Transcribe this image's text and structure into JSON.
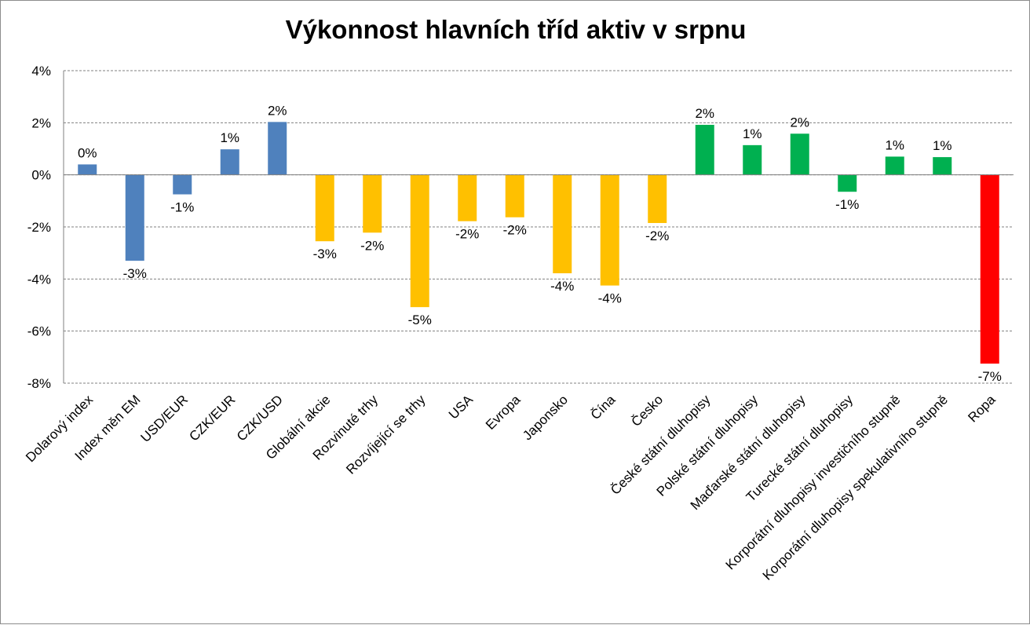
{
  "chart_data": {
    "type": "bar",
    "title": "Výkonnost hlavních tříd aktiv v srpnu",
    "xlabel": "",
    "ylabel": "",
    "ylim": [
      -0.08,
      0.04
    ],
    "y_ticks": [
      "4%",
      "2%",
      "0%",
      "-2%",
      "-4%",
      "-6%",
      "-8%"
    ],
    "y_tick_values": [
      0.04,
      0.02,
      0.0,
      -0.02,
      -0.04,
      -0.06,
      -0.08
    ],
    "grid": "horizontal dashed",
    "legend": "none",
    "categories": [
      "Dolarový index",
      "Index měn EM",
      "USD/EUR",
      "CZK/EUR",
      "CZK/USD",
      "Globální akcie",
      "Rozvinuté trhy",
      "Rozvíjející se trhy",
      "USA",
      "Evropa",
      "Japonsko",
      "Čína",
      "Česko",
      "České státní dluhopisy",
      "Polské státní dluhopisy",
      "Maďarské státní dluhopisy",
      "Turecké státní dluhopisy",
      "Korporátní dluhopisy investičního stupně",
      "Korporátní dluhopisy spekulativního stupně",
      "Ropa"
    ],
    "values": [
      0.004,
      -0.033,
      -0.0075,
      0.0098,
      0.0203,
      -0.0255,
      -0.0222,
      -0.0508,
      -0.0178,
      -0.0163,
      -0.0378,
      -0.0425,
      -0.0185,
      0.0192,
      0.0114,
      0.0158,
      -0.0065,
      0.007,
      0.0068,
      -0.0725
    ],
    "data_labels": [
      "0%",
      "-3%",
      "-1%",
      "1%",
      "2%",
      "-3%",
      "-2%",
      "-5%",
      "-2%",
      "-2%",
      "-4%",
      "-4%",
      "-2%",
      "2%",
      "1%",
      "2%",
      "-1%",
      "1%",
      "1%",
      "-7%"
    ],
    "bar_colors": [
      "#4f81bd",
      "#4f81bd",
      "#4f81bd",
      "#4f81bd",
      "#4f81bd",
      "#ffc000",
      "#ffc000",
      "#ffc000",
      "#ffc000",
      "#ffc000",
      "#ffc000",
      "#ffc000",
      "#ffc000",
      "#00b050",
      "#00b050",
      "#00b050",
      "#00b050",
      "#00b050",
      "#00b050",
      "#ff0000"
    ]
  }
}
